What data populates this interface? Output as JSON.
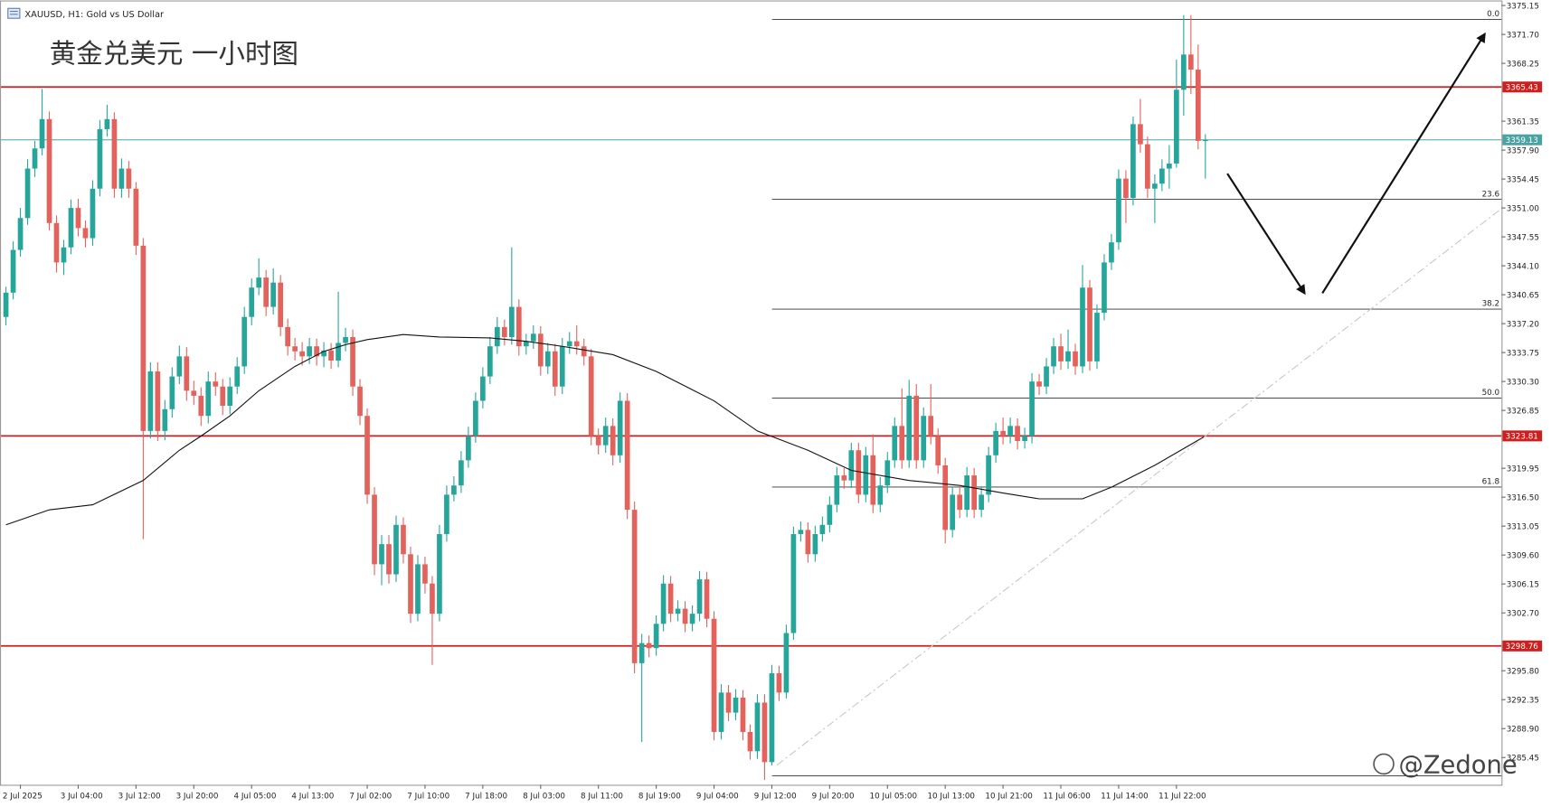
{
  "header": {
    "symbol": "XAUUSD, H1:  Gold vs US Dollar"
  },
  "chart_data": {
    "type": "candlestick",
    "title": "黄金兑美元 一小时图",
    "watermark": "@Zedone",
    "up_color": "#26a69a",
    "down_color": "#e4625c",
    "ylim": [
      3282.2,
      3375.75
    ],
    "yticks": [
      {
        "value": 3375.15,
        "label": "3375.15"
      },
      {
        "value": 3371.7,
        "label": "3371.70"
      },
      {
        "value": 3368.25,
        "label": "3368.25"
      },
      {
        "value": 3361.35,
        "label": "3361.35"
      },
      {
        "value": 3357.9,
        "label": "3357.90"
      },
      {
        "value": 3354.45,
        "label": "3354.45"
      },
      {
        "value": 3351,
        "label": "3351.00"
      },
      {
        "value": 3347.55,
        "label": "3347.55"
      },
      {
        "value": 3344.1,
        "label": "3344.10"
      },
      {
        "value": 3340.65,
        "label": "3340.65"
      },
      {
        "value": 3337.2,
        "label": "3337.20"
      },
      {
        "value": 3333.75,
        "label": "3333.75"
      },
      {
        "value": 3330.3,
        "label": "3330.30"
      },
      {
        "value": 3326.85,
        "label": "3326.85"
      },
      {
        "value": 3319.95,
        "label": "3319.95"
      },
      {
        "value": 3316.5,
        "label": "3316.50"
      },
      {
        "value": 3313.05,
        "label": "3313.05"
      },
      {
        "value": 3309.6,
        "label": "3309.60"
      },
      {
        "value": 3306.15,
        "label": "3306.15"
      },
      {
        "value": 3302.7,
        "label": "3302.70"
      },
      {
        "value": 3295.8,
        "label": "3295.80"
      },
      {
        "value": 3292.35,
        "label": "3292.35"
      },
      {
        "value": 3288.9,
        "label": "3288.90"
      },
      {
        "value": 3285.45,
        "label": "3285.45"
      }
    ],
    "categories": [
      null,
      null,
      "2 Jul 2025",
      null,
      null,
      null,
      null,
      null,
      null,
      null,
      "3 Jul 04:00",
      null,
      null,
      null,
      null,
      null,
      null,
      null,
      "3 Jul 12:00",
      null,
      null,
      null,
      null,
      null,
      null,
      null,
      "3 Jul 20:00",
      null,
      null,
      null,
      null,
      null,
      null,
      null,
      "4 Jul 05:00",
      null,
      null,
      null,
      null,
      null,
      null,
      null,
      "4 Jul 13:00",
      null,
      null,
      null,
      null,
      null,
      null,
      null,
      "7 Jul 02:00",
      null,
      null,
      null,
      null,
      null,
      null,
      null,
      "7 Jul 10:00",
      null,
      null,
      null,
      null,
      null,
      null,
      null,
      "7 Jul 18:00",
      null,
      null,
      null,
      null,
      null,
      null,
      null,
      "8 Jul 03:00",
      null,
      null,
      null,
      null,
      null,
      null,
      null,
      "8 Jul 11:00",
      null,
      null,
      null,
      null,
      null,
      null,
      null,
      "8 Jul 19:00",
      null,
      null,
      null,
      null,
      null,
      null,
      null,
      "9 Jul 04:00",
      null,
      null,
      null,
      null,
      null,
      null,
      null,
      "9 Jul 12:00",
      null,
      null,
      null,
      null,
      null,
      null,
      null,
      "9 Jul 20:00",
      null,
      null,
      null,
      null,
      null,
      null,
      null,
      "10 Jul 05:00",
      null,
      null,
      null,
      null,
      null,
      null,
      null,
      "10 Jul 13:00",
      null,
      null,
      null,
      null,
      null,
      null,
      null,
      "10 Jul 21:00",
      null,
      null,
      null,
      null,
      null,
      null,
      null,
      "11 Jul 06:00",
      null,
      null,
      null,
      null,
      null,
      null,
      null,
      "11 Jul 14:00",
      null,
      null,
      null,
      null,
      null,
      null,
      null,
      "11 Jul 22:00",
      null,
      null,
      null,
      null
    ],
    "candles": [
      [
        3338.0,
        3341.6,
        3337.0,
        3340.9
      ],
      [
        3340.9,
        3347.0,
        3340.1,
        3346.0
      ],
      [
        3346.0,
        3351.0,
        3345.2,
        3349.8
      ],
      [
        3349.8,
        3356.8,
        3349.0,
        3355.7
      ],
      [
        3355.7,
        3359.0,
        3354.7,
        3358.1
      ],
      [
        3358.1,
        3365.2,
        3357.3,
        3361.6
      ],
      [
        3361.6,
        3362.5,
        3348.3,
        3349.2
      ],
      [
        3349.2,
        3350.1,
        3343.3,
        3344.5
      ],
      [
        3344.5,
        3347.2,
        3343.0,
        3346.3
      ],
      [
        3346.3,
        3352.0,
        3345.5,
        3351.0
      ],
      [
        3351.0,
        3352.1,
        3347.6,
        3348.6
      ],
      [
        3348.6,
        3349.5,
        3346.3,
        3347.4
      ],
      [
        3347.4,
        3354.3,
        3346.5,
        3353.3
      ],
      [
        3353.3,
        3361.5,
        3352.4,
        3360.4
      ],
      [
        3360.4,
        3363.3,
        3359.5,
        3361.6
      ],
      [
        3361.6,
        3362.4,
        3352.2,
        3353.3
      ],
      [
        3353.3,
        3356.9,
        3352.2,
        3355.7
      ],
      [
        3355.7,
        3356.6,
        3352.2,
        3353.3
      ],
      [
        3353.3,
        3354.1,
        3345.4,
        3346.5
      ],
      [
        3346.5,
        3347.4,
        3311.5,
        3324.4
      ],
      [
        3324.4,
        3332.6,
        3323.5,
        3331.5
      ],
      [
        3331.5,
        3332.6,
        3323.2,
        3324.4
      ],
      [
        3324.4,
        3328.1,
        3323.3,
        3327.0
      ],
      [
        3327.0,
        3332.0,
        3326.0,
        3330.9
      ],
      [
        3330.9,
        3334.6,
        3330.0,
        3333.3
      ],
      [
        3333.3,
        3334.4,
        3328.0,
        3329.2
      ],
      [
        3329.2,
        3330.4,
        3327.5,
        3328.6
      ],
      [
        3328.6,
        3329.6,
        3325.0,
        3326.2
      ],
      [
        3326.2,
        3331.5,
        3325.3,
        3330.3
      ],
      [
        3330.3,
        3331.4,
        3328.6,
        3329.7
      ],
      [
        3329.7,
        3330.6,
        3326.3,
        3327.4
      ],
      [
        3327.4,
        3330.8,
        3326.4,
        3329.7
      ],
      [
        3329.7,
        3333.2,
        3328.8,
        3332.1
      ],
      [
        3332.1,
        3339.2,
        3331.2,
        3338.0
      ],
      [
        3338.0,
        3342.6,
        3337.0,
        3341.5
      ],
      [
        3341.5,
        3345.0,
        3340.6,
        3342.7
      ],
      [
        3342.7,
        3343.6,
        3338.1,
        3339.2
      ],
      [
        3339.2,
        3343.8,
        3338.3,
        3342.1
      ],
      [
        3342.1,
        3343.0,
        3335.7,
        3336.8
      ],
      [
        3336.8,
        3337.8,
        3333.4,
        3334.5
      ],
      [
        3334.5,
        3335.5,
        3332.8,
        3333.9
      ],
      [
        3333.9,
        3335.0,
        3332.2,
        3333.3
      ],
      [
        3333.3,
        3335.5,
        3332.4,
        3334.5
      ],
      [
        3334.5,
        3335.4,
        3332.2,
        3333.3
      ],
      [
        3333.3,
        3335.0,
        3332.0,
        3334.0
      ],
      [
        3334.0,
        3334.9,
        3331.8,
        3332.8
      ],
      [
        3332.8,
        3341.0,
        3332.0,
        3334.9
      ],
      [
        3334.9,
        3336.7,
        3333.9,
        3335.6
      ],
      [
        3335.6,
        3336.5,
        3328.6,
        3329.7
      ],
      [
        3329.7,
        3330.6,
        3325.1,
        3326.2
      ],
      [
        3326.2,
        3327.1,
        3315.7,
        3316.8
      ],
      [
        3316.8,
        3317.7,
        3307.2,
        3308.5
      ],
      [
        3308.5,
        3312.0,
        3306.0,
        3310.9
      ],
      [
        3310.9,
        3312.0,
        3306.2,
        3307.3
      ],
      [
        3307.3,
        3314.3,
        3306.4,
        3313.2
      ],
      [
        3313.2,
        3314.1,
        3308.6,
        3309.7
      ],
      [
        3309.7,
        3310.6,
        3301.5,
        3302.6
      ],
      [
        3302.6,
        3309.6,
        3301.7,
        3308.5
      ],
      [
        3308.5,
        3309.4,
        3305.0,
        3306.2
      ],
      [
        3306.2,
        3307.1,
        3296.5,
        3302.6
      ],
      [
        3302.6,
        3313.2,
        3301.7,
        3312.1
      ],
      [
        3312.1,
        3317.9,
        3311.2,
        3316.8
      ],
      [
        3316.8,
        3319.0,
        3316.0,
        3317.9
      ],
      [
        3317.9,
        3322.0,
        3317.0,
        3320.9
      ],
      [
        3320.9,
        3324.9,
        3320.0,
        3323.8
      ],
      [
        3323.8,
        3329.0,
        3323.0,
        3328.0
      ],
      [
        3328.0,
        3332.0,
        3327.1,
        3330.9
      ],
      [
        3330.9,
        3335.6,
        3330.0,
        3334.5
      ],
      [
        3334.5,
        3338.0,
        3333.6,
        3336.8
      ],
      [
        3336.8,
        3337.7,
        3334.6,
        3335.6
      ],
      [
        3335.6,
        3346.3,
        3334.7,
        3339.2
      ],
      [
        3339.2,
        3340.1,
        3333.4,
        3334.5
      ],
      [
        3334.5,
        3336.0,
        3333.5,
        3335.1
      ],
      [
        3335.1,
        3337.0,
        3334.2,
        3336.0
      ],
      [
        3336.0,
        3336.9,
        3331.0,
        3332.1
      ],
      [
        3332.1,
        3334.9,
        3331.2,
        3333.9
      ],
      [
        3333.9,
        3334.8,
        3328.6,
        3329.7
      ],
      [
        3329.7,
        3335.5,
        3328.8,
        3334.5
      ],
      [
        3334.5,
        3336.2,
        3333.6,
        3335.1
      ],
      [
        3335.1,
        3337.0,
        3333.5,
        3334.5
      ],
      [
        3334.5,
        3335.4,
        3332.2,
        3333.3
      ],
      [
        3333.3,
        3334.2,
        3322.7,
        3323.8
      ],
      [
        3323.8,
        3324.7,
        3321.6,
        3322.7
      ],
      [
        3322.7,
        3326.0,
        3321.8,
        3325.0
      ],
      [
        3325.0,
        3325.9,
        3320.3,
        3321.5
      ],
      [
        3321.5,
        3329.0,
        3320.6,
        3328.0
      ],
      [
        3328.0,
        3328.9,
        3313.9,
        3315.0
      ],
      [
        3315.0,
        3316.0,
        3295.5,
        3296.7
      ],
      [
        3296.7,
        3300.2,
        3287.3,
        3299.1
      ],
      [
        3299.1,
        3300.0,
        3297.4,
        3298.5
      ],
      [
        3298.5,
        3302.4,
        3297.6,
        3301.4
      ],
      [
        3301.4,
        3307.2,
        3300.5,
        3306.2
      ],
      [
        3306.2,
        3307.1,
        3301.6,
        3302.6
      ],
      [
        3302.6,
        3304.2,
        3301.7,
        3303.2
      ],
      [
        3303.2,
        3304.1,
        3300.4,
        3301.4
      ],
      [
        3301.4,
        3303.6,
        3300.5,
        3302.6
      ],
      [
        3302.6,
        3307.7,
        3301.7,
        3306.7
      ],
      [
        3306.7,
        3307.6,
        3301.0,
        3302.0
      ],
      [
        3302.0,
        3302.9,
        3287.5,
        3288.5
      ],
      [
        3288.5,
        3294.2,
        3287.6,
        3293.2
      ],
      [
        3293.2,
        3294.1,
        3289.8,
        3290.8
      ],
      [
        3290.8,
        3293.6,
        3289.9,
        3292.6
      ],
      [
        3292.6,
        3293.5,
        3287.5,
        3288.5
      ],
      [
        3288.5,
        3289.4,
        3285.2,
        3286.2
      ],
      [
        3286.2,
        3293.0,
        3285.3,
        3292.0
      ],
      [
        3292.0,
        3293.0,
        3282.8,
        3284.9
      ],
      [
        3284.9,
        3296.5,
        3284.5,
        3295.5
      ],
      [
        3295.5,
        3296.4,
        3292.2,
        3293.2
      ],
      [
        3293.2,
        3301.3,
        3292.5,
        3300.3
      ],
      [
        3300.3,
        3313.0,
        3299.5,
        3312.1
      ],
      [
        3312.1,
        3313.6,
        3311.2,
        3312.6
      ],
      [
        3312.6,
        3313.5,
        3308.7,
        3309.7
      ],
      [
        3309.7,
        3313.1,
        3308.8,
        3312.1
      ],
      [
        3312.1,
        3314.2,
        3311.2,
        3313.2
      ],
      [
        3313.2,
        3316.6,
        3312.3,
        3315.6
      ],
      [
        3315.6,
        3320.1,
        3314.7,
        3319.1
      ],
      [
        3319.1,
        3320.0,
        3317.5,
        3318.5
      ],
      [
        3318.5,
        3323.0,
        3317.6,
        3322.1
      ],
      [
        3322.1,
        3323.0,
        3315.8,
        3316.8
      ],
      [
        3316.8,
        3322.5,
        3315.9,
        3321.5
      ],
      [
        3321.5,
        3324.0,
        3314.6,
        3315.6
      ],
      [
        3315.6,
        3318.9,
        3314.7,
        3317.9
      ],
      [
        3317.9,
        3321.9,
        3317.0,
        3320.9
      ],
      [
        3320.9,
        3326.0,
        3320.0,
        3325.0
      ],
      [
        3325.0,
        3329.5,
        3319.9,
        3320.9
      ],
      [
        3320.9,
        3330.5,
        3320.0,
        3328.6
      ],
      [
        3328.6,
        3330.0,
        3319.9,
        3320.9
      ],
      [
        3320.9,
        3327.2,
        3320.0,
        3326.2
      ],
      [
        3326.2,
        3330.0,
        3322.8,
        3323.8
      ],
      [
        3323.8,
        3324.7,
        3319.3,
        3320.3
      ],
      [
        3320.3,
        3321.2,
        3311.0,
        3312.6
      ],
      [
        3312.6,
        3317.8,
        3311.7,
        3316.8
      ],
      [
        3316.8,
        3317.7,
        3314.0,
        3315.0
      ],
      [
        3315.0,
        3320.1,
        3314.1,
        3319.1
      ],
      [
        3319.1,
        3320.0,
        3314.0,
        3315.0
      ],
      [
        3315.0,
        3317.8,
        3314.1,
        3316.8
      ],
      [
        3316.8,
        3322.5,
        3315.9,
        3321.5
      ],
      [
        3321.5,
        3325.4,
        3320.6,
        3324.4
      ],
      [
        3324.4,
        3326.0,
        3322.8,
        3323.8
      ],
      [
        3323.8,
        3326.0,
        3322.9,
        3325.0
      ],
      [
        3325.0,
        3325.9,
        3322.2,
        3323.2
      ],
      [
        3323.2,
        3324.8,
        3322.3,
        3323.8
      ],
      [
        3323.8,
        3331.3,
        3322.9,
        3330.3
      ],
      [
        3330.3,
        3331.2,
        3328.7,
        3329.7
      ],
      [
        3329.7,
        3333.1,
        3328.8,
        3332.1
      ],
      [
        3332.1,
        3335.5,
        3331.2,
        3334.5
      ],
      [
        3334.5,
        3336.0,
        3331.7,
        3332.7
      ],
      [
        3332.7,
        3336.5,
        3331.8,
        3333.9
      ],
      [
        3333.9,
        3334.8,
        3331.1,
        3332.1
      ],
      [
        3332.1,
        3344.2,
        3331.3,
        3341.5
      ],
      [
        3341.5,
        3342.4,
        3331.6,
        3332.7
      ],
      [
        3332.7,
        3339.5,
        3331.8,
        3338.5
      ],
      [
        3338.5,
        3345.5,
        3337.6,
        3344.5
      ],
      [
        3344.5,
        3347.9,
        3343.6,
        3346.9
      ],
      [
        3346.9,
        3355.6,
        3346.0,
        3354.5
      ],
      [
        3354.5,
        3355.5,
        3349.2,
        3352.2
      ],
      [
        3352.2,
        3361.9,
        3351.3,
        3361.0
      ],
      [
        3361.0,
        3364.0,
        3357.6,
        3358.6
      ],
      [
        3358.6,
        3359.5,
        3352.2,
        3353.3
      ],
      [
        3353.3,
        3355.0,
        3349.2,
        3353.9
      ],
      [
        3353.9,
        3356.8,
        3353.0,
        3355.7
      ],
      [
        3355.7,
        3358.5,
        3353.3,
        3356.3
      ],
      [
        3356.3,
        3368.7,
        3355.8,
        3365.1
      ],
      [
        3365.1,
        3374.0,
        3362.0,
        3369.3
      ],
      [
        3369.3,
        3374.0,
        3364.6,
        3367.5
      ],
      [
        3367.5,
        3370.5,
        3358.0,
        3359.0
      ],
      [
        3359.0,
        3359.8,
        3354.5,
        3359.1
      ]
    ],
    "ma": {
      "color": "#111111",
      "x": [
        0,
        6,
        12,
        19,
        24,
        27,
        31,
        35,
        40,
        44,
        47,
        50,
        55,
        60,
        67,
        72,
        77,
        84,
        90,
        98,
        104,
        111,
        117,
        125,
        132,
        138,
        143,
        149,
        153,
        159,
        163,
        166
      ],
      "values": [
        3313.2,
        3315.0,
        3315.6,
        3318.5,
        3322.1,
        3323.8,
        3326.2,
        3329.2,
        3332.1,
        3333.9,
        3334.7,
        3335.3,
        3335.9,
        3335.6,
        3335.5,
        3335.1,
        3334.5,
        3333.5,
        3331.5,
        3328.0,
        3324.4,
        3322.1,
        3319.7,
        3318.5,
        3317.9,
        3317.0,
        3316.3,
        3316.3,
        3317.7,
        3320.3,
        3322.3,
        3323.8
      ]
    },
    "levels": [
      {
        "value": 3365.43,
        "color": "#cc1f1f"
      },
      {
        "value": 3359.13,
        "color": "#4aa3a3"
      },
      {
        "value": 3323.81,
        "color": "#cc1f1f"
      },
      {
        "value": 3298.76,
        "color": "#cc1f1f"
      }
    ],
    "fib": [
      {
        "value": 3373.5,
        "label": "0.0"
      },
      {
        "value": 3352.03,
        "label": "23.6"
      },
      {
        "value": 3338.94,
        "label": "38.2"
      },
      {
        "value": 3328.32,
        "label": "50.0"
      },
      {
        "value": 3317.71,
        "label": "61.8"
      },
      {
        "value": 3283.27
      }
    ]
  }
}
